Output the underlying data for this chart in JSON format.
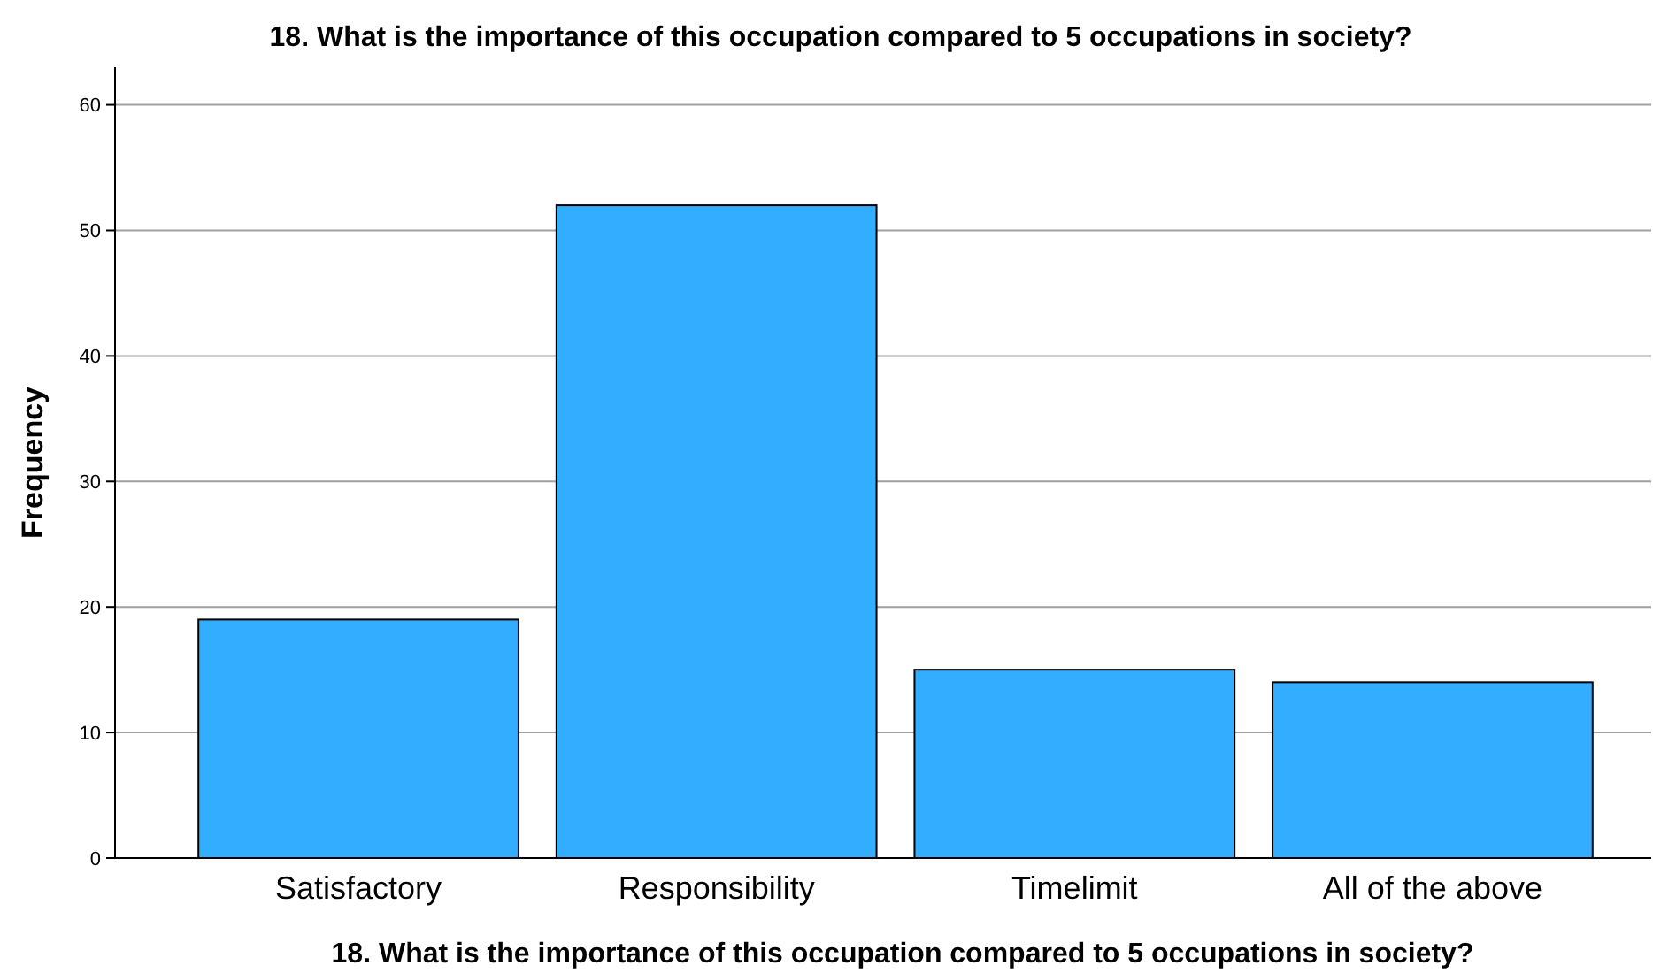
{
  "chart_data": {
    "type": "bar",
    "title": "18. What is the importance of this occupation compared to 5 occupations in society?",
    "xlabel": "18. What is the importance of this occupation compared to 5 occupations in society?",
    "ylabel": "Frequency",
    "categories": [
      "Satisfactory",
      "Responsibility",
      "Timelimit",
      "All of the above"
    ],
    "values": [
      19,
      52,
      15,
      14
    ],
    "color": "#33adff",
    "ylim": [
      0,
      63
    ],
    "yticks": [
      0,
      10,
      20,
      30,
      40,
      50,
      60
    ],
    "grid": "y"
  }
}
